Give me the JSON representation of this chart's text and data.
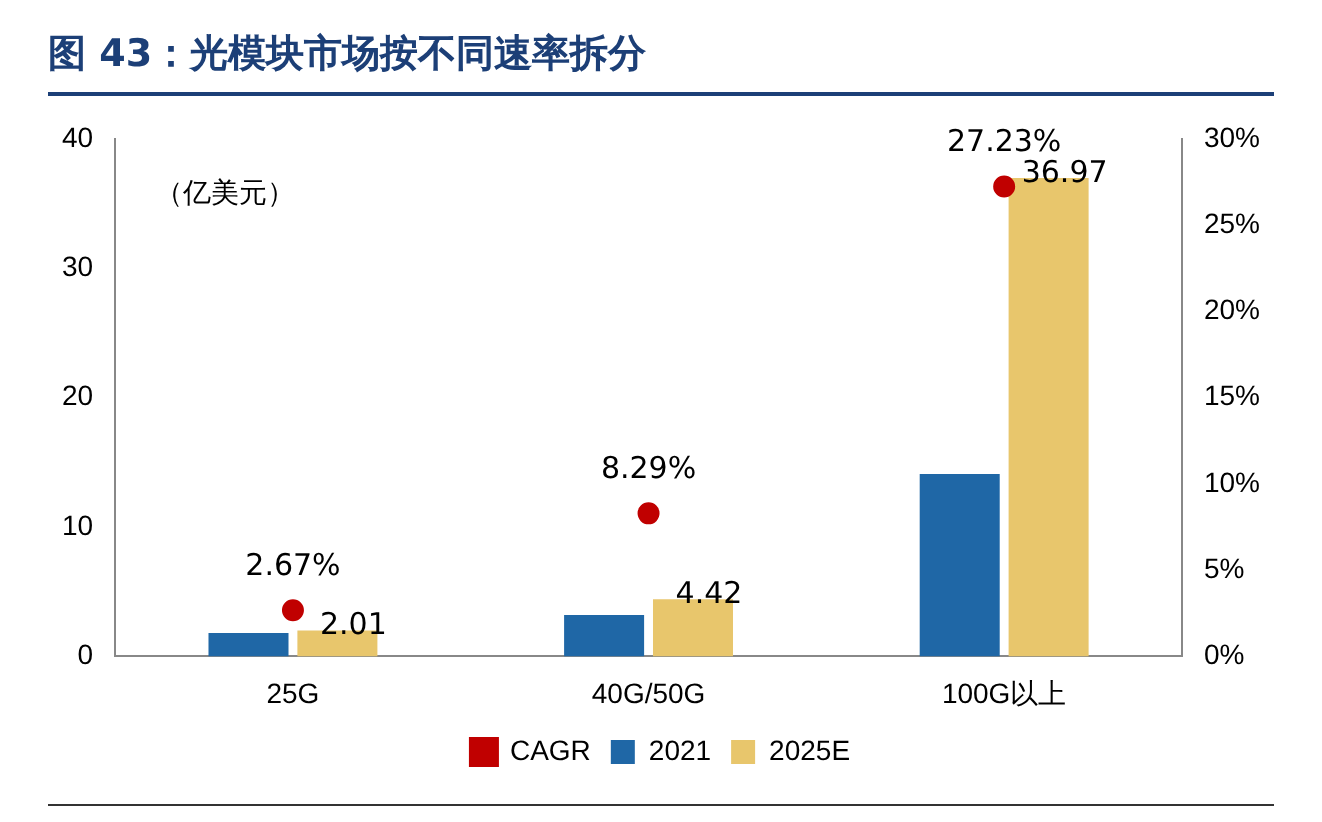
{
  "chart_data": {
    "type": "bar",
    "title": "图 43：光模块市场按不同速率拆分",
    "annotations": [
      "（亿美元）"
    ],
    "categories": [
      "25G",
      "40G/50G",
      "100G以上"
    ],
    "series": [
      {
        "name": "2021",
        "color": "#1f67a6",
        "values": [
          1.8,
          3.2,
          14.1
        ]
      },
      {
        "name": "2025E",
        "color": "#e8c66c",
        "values": [
          2.01,
          4.42,
          36.97
        ],
        "value_labels": [
          "2.01",
          "4.42",
          "36.97"
        ]
      },
      {
        "name": "CAGR",
        "type": "scatter",
        "axis": "y2",
        "color": "#c00000",
        "x": [
          "25G",
          "40G/50G",
          "100G以上"
        ],
        "values": [
          2.67,
          8.29,
          27.23
        ],
        "value_labels": [
          "2.67%",
          "8.29%",
          "27.23%"
        ],
        "marker": "circle"
      }
    ],
    "ylim": [
      0,
      40
    ],
    "yticks": [
      0,
      10,
      20,
      30,
      40
    ],
    "y2lim": [
      0,
      30
    ],
    "y2ticks": [
      {
        "value": 0,
        "label": "0%"
      },
      {
        "value": 5,
        "label": "5%"
      },
      {
        "value": 10,
        "label": "10%"
      },
      {
        "value": 15,
        "label": "15%"
      },
      {
        "value": 20,
        "label": "20%"
      },
      {
        "value": 25,
        "label": "25%"
      },
      {
        "value": 30,
        "label": "30%"
      }
    ],
    "legend": "bottom",
    "grid": false
  }
}
